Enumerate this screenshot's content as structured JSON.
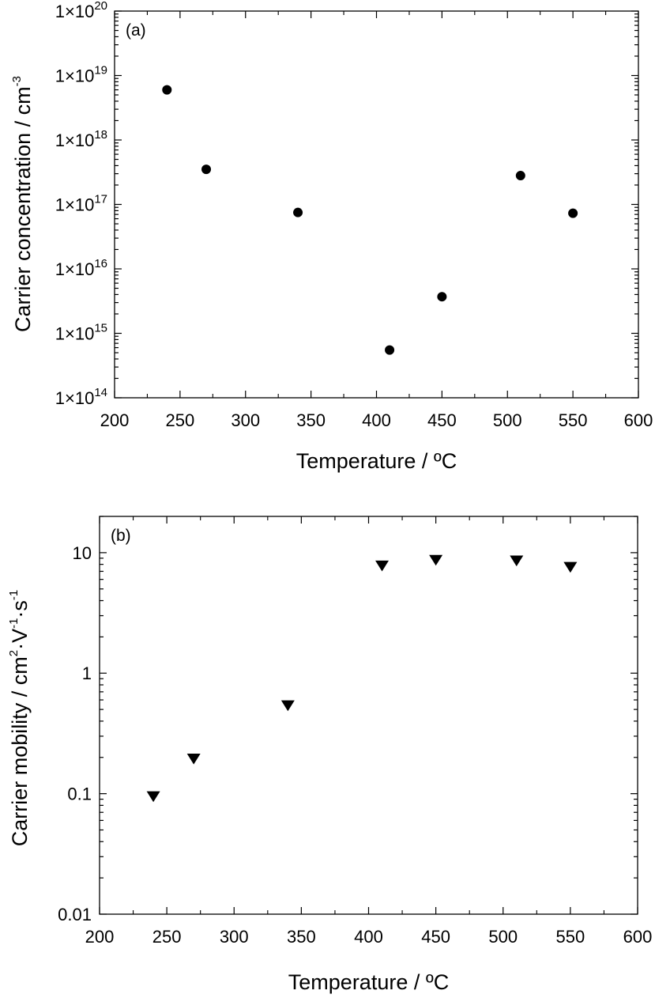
{
  "chart_data": [
    {
      "type": "scatter",
      "panel_label": "(a)",
      "xlabel": "Temperature / ºC",
      "ylabel": "Carrier concentration / cm",
      "ylabel_superscript": "-3",
      "xscale": "linear",
      "yscale": "log",
      "xlim": [
        200,
        600
      ],
      "ylim": [
        100000000000000.0,
        1e+20
      ],
      "x_ticks": [
        "200",
        "250",
        "300",
        "350",
        "400",
        "450",
        "500",
        "550",
        "600"
      ],
      "y_ticks": [
        {
          "mantissa": "1×10",
          "exp": "14"
        },
        {
          "mantissa": "1×10",
          "exp": "15"
        },
        {
          "mantissa": "1×10",
          "exp": "16"
        },
        {
          "mantissa": "1×10",
          "exp": "17"
        },
        {
          "mantissa": "1×10",
          "exp": "18"
        },
        {
          "mantissa": "1×10",
          "exp": "19"
        },
        {
          "mantissa": "1×10",
          "exp": "20"
        }
      ],
      "marker": "circle",
      "marker_color": "#000000",
      "grid": false,
      "points": [
        {
          "x": 240,
          "y": 6e+18
        },
        {
          "x": 270,
          "y": 3.5e+17
        },
        {
          "x": 340,
          "y": 7.5e+16
        },
        {
          "x": 410,
          "y": 550000000000000.0
        },
        {
          "x": 450,
          "y": 3700000000000000.0
        },
        {
          "x": 510,
          "y": 2.8e+17
        },
        {
          "x": 550,
          "y": 7.3e+16
        }
      ]
    },
    {
      "type": "scatter",
      "panel_label": "(b)",
      "xlabel": "Temperature / ºC",
      "ylabel_parts": [
        {
          "t": "Carrier mobility / cm"
        },
        {
          "t": "2",
          "sup": true
        },
        {
          "t": "·V"
        },
        {
          "t": "-1",
          "sup": true
        },
        {
          "t": "·s"
        },
        {
          "t": "-1",
          "sup": true
        }
      ],
      "xscale": "linear",
      "yscale": "log",
      "xlim": [
        200,
        600
      ],
      "ylim": [
        0.01,
        20
      ],
      "x_ticks": [
        "200",
        "250",
        "300",
        "350",
        "400",
        "450",
        "500",
        "550",
        "600"
      ],
      "y_ticks": [
        "0.01",
        "0.1",
        "1",
        "10"
      ],
      "marker": "triangle-down",
      "marker_color": "#000000",
      "grid": false,
      "points": [
        {
          "x": 240,
          "y": 0.095
        },
        {
          "x": 270,
          "y": 0.195
        },
        {
          "x": 340,
          "y": 0.54
        },
        {
          "x": 410,
          "y": 7.8
        },
        {
          "x": 450,
          "y": 8.7
        },
        {
          "x": 510,
          "y": 8.6
        },
        {
          "x": 550,
          "y": 7.6
        }
      ]
    }
  ]
}
